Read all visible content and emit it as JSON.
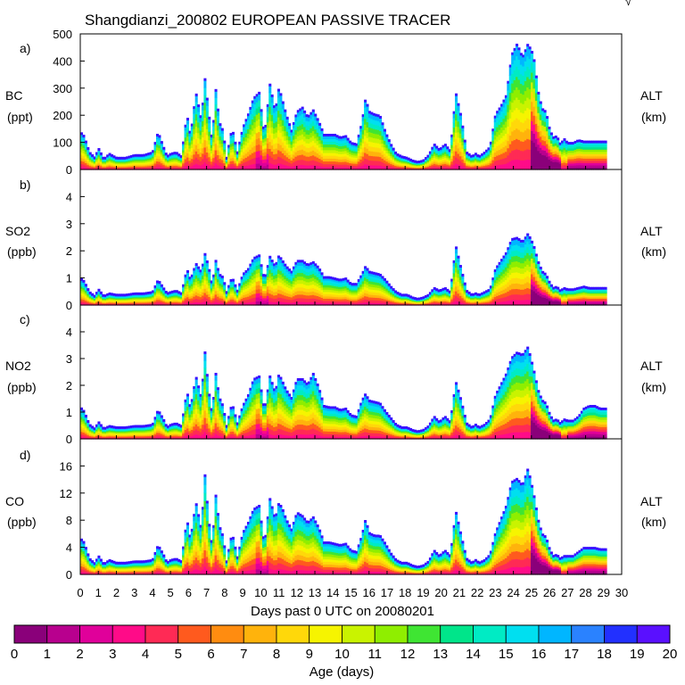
{
  "title": "Shangdianzi_200802 EUROPEAN PASSIVE TRACER",
  "corner_mark": "√",
  "x_axis": {
    "label": "Days past 0 UTC on 20080201",
    "range": [
      0,
      30
    ],
    "ticks": [
      "0",
      "1",
      "2",
      "3",
      "4",
      "5",
      "6",
      "7",
      "8",
      "9",
      "10",
      "11",
      "12",
      "13",
      "14",
      "15",
      "16",
      "17",
      "18",
      "19",
      "20",
      "21",
      "22",
      "23",
      "24",
      "25",
      "26",
      "27",
      "28",
      "29",
      "30"
    ]
  },
  "colorbar": {
    "label": "Age (days)",
    "range": [
      0,
      20
    ],
    "ticks": [
      "0",
      "1",
      "2",
      "3",
      "4",
      "5",
      "6",
      "7",
      "8",
      "9",
      "10",
      "11",
      "12",
      "13",
      "14",
      "15",
      "16",
      "17",
      "18",
      "19",
      "20"
    ],
    "colors": [
      "#8a007a",
      "#b8008e",
      "#e0009a",
      "#ff0b88",
      "#ff2a55",
      "#ff5a1e",
      "#ff8c10",
      "#ffb30c",
      "#ffd80a",
      "#f6f400",
      "#c9f300",
      "#8fee00",
      "#3fe533",
      "#00e58a",
      "#00ebc4",
      "#00dff0",
      "#00b6ff",
      "#2a82ff",
      "#2230ff",
      "#5a10ff"
    ]
  },
  "chart_data": [
    {
      "type": "area",
      "panel": "a)",
      "ylabel": "BC",
      "yunit": "(ppt)",
      "right_label": "ALT",
      "right_unit": "(km)",
      "ylim": [
        0,
        500
      ],
      "yticks": [
        "0",
        "100",
        "200",
        "300",
        "400",
        "500"
      ],
      "x": [
        0,
        0.2,
        0.5,
        0.8,
        1,
        1.3,
        1.6,
        2,
        2.5,
        3,
        3.5,
        4,
        4.3,
        4.6,
        4.8,
        5,
        5.3,
        5.6,
        5.9,
        6.1,
        6.4,
        6.7,
        6.9,
        7.1,
        7.3,
        7.5,
        7.7,
        7.9,
        8.1,
        8.4,
        8.7,
        9,
        9.3,
        9.6,
        9.9,
        10.2,
        10.5,
        10.8,
        11,
        11.2,
        11.4,
        11.7,
        12,
        12.3,
        12.6,
        12.9,
        13.2,
        13.5,
        13.8,
        14.1,
        14.4,
        14.7,
        15,
        15.3,
        15.6,
        15.8,
        16,
        16.3,
        16.6,
        16.9,
        17.2,
        17.5,
        17.8,
        18.1,
        18.4,
        18.7,
        19,
        19.3,
        19.6,
        19.9,
        20.2,
        20.5,
        20.8,
        21.1,
        21.4,
        21.7,
        21.9,
        22.1,
        22.4,
        22.7,
        23,
        23.3,
        23.6,
        23.9,
        24.2,
        24.5,
        24.8,
        25.1,
        25.4,
        25.6,
        25.8,
        26,
        26.2,
        26.4,
        26.6,
        26.8,
        27,
        27.3,
        27.6,
        27.9,
        28.2,
        28.5,
        28.8,
        29.1
      ],
      "values": [
        135,
        120,
        60,
        40,
        75,
        35,
        55,
        40,
        40,
        50,
        50,
        60,
        135,
        80,
        45,
        55,
        60,
        45,
        200,
        120,
        280,
        180,
        330,
        210,
        100,
        290,
        170,
        140,
        40,
        150,
        60,
        150,
        200,
        260,
        280,
        120,
        310,
        210,
        300,
        250,
        200,
        140,
        210,
        225,
        190,
        215,
        175,
        125,
        125,
        125,
        115,
        120,
        95,
        90,
        170,
        260,
        210,
        200,
        195,
        135,
        90,
        55,
        45,
        40,
        30,
        25,
        30,
        50,
        90,
        70,
        90,
        65,
        280,
        190,
        60,
        45,
        55,
        45,
        60,
        80,
        200,
        230,
        270,
        420,
        460,
        410,
        460,
        420,
        270,
        220,
        210,
        145,
        115,
        120,
        90,
        110,
        95,
        95,
        105,
        100,
        100,
        100,
        100,
        100
      ]
    },
    {
      "type": "area",
      "panel": "b)",
      "ylabel": "SO2",
      "yunit": "(ppb)",
      "right_label": "ALT",
      "right_unit": "(km)",
      "ylim": [
        0,
        5
      ],
      "yticks": [
        "0",
        "1",
        "2",
        "3",
        "4"
      ],
      "x": [
        0,
        0.2,
        0.5,
        0.8,
        1,
        1.3,
        1.6,
        2,
        2.5,
        3,
        3.5,
        4,
        4.3,
        4.6,
        4.8,
        5,
        5.3,
        5.6,
        5.9,
        6.1,
        6.4,
        6.7,
        6.9,
        7.1,
        7.3,
        7.5,
        7.7,
        7.9,
        8.1,
        8.4,
        8.7,
        9,
        9.3,
        9.6,
        9.9,
        10.2,
        10.5,
        10.8,
        11,
        11.2,
        11.4,
        11.7,
        12,
        12.3,
        12.6,
        12.9,
        13.2,
        13.5,
        13.8,
        14.1,
        14.4,
        14.7,
        15,
        15.3,
        15.6,
        15.8,
        16,
        16.3,
        16.6,
        16.9,
        17.2,
        17.5,
        17.8,
        18.1,
        18.4,
        18.7,
        19,
        19.3,
        19.6,
        19.9,
        20.2,
        20.5,
        20.8,
        21.1,
        21.4,
        21.7,
        21.9,
        22.1,
        22.4,
        22.7,
        23,
        23.3,
        23.6,
        23.9,
        24.2,
        24.5,
        24.8,
        25.1,
        25.4,
        25.6,
        25.8,
        26,
        26.2,
        26.4,
        26.6,
        26.8,
        27,
        27.3,
        27.6,
        27.9,
        28.2,
        28.5,
        28.8,
        29.1
      ],
      "values": [
        0.95,
        0.85,
        0.45,
        0.3,
        0.55,
        0.3,
        0.4,
        0.35,
        0.35,
        0.4,
        0.4,
        0.45,
        0.9,
        0.6,
        0.4,
        0.45,
        0.5,
        0.4,
        1.3,
        0.9,
        1.5,
        1.2,
        1.85,
        1.4,
        0.7,
        1.6,
        1.1,
        1.0,
        0.45,
        1.0,
        0.5,
        1.1,
        1.3,
        1.7,
        1.8,
        0.9,
        1.75,
        1.4,
        1.8,
        1.6,
        1.4,
        1.2,
        1.6,
        1.6,
        1.45,
        1.55,
        1.35,
        1.0,
        1.0,
        0.95,
        0.9,
        0.95,
        0.75,
        0.75,
        1.1,
        1.4,
        1.2,
        1.15,
        1.1,
        0.9,
        0.65,
        0.45,
        0.35,
        0.35,
        0.25,
        0.2,
        0.25,
        0.35,
        0.6,
        0.5,
        0.6,
        0.45,
        2.15,
        1.3,
        0.5,
        0.35,
        0.4,
        0.35,
        0.45,
        0.55,
        1.3,
        1.6,
        1.9,
        2.4,
        2.45,
        2.3,
        2.6,
        2.2,
        1.5,
        1.2,
        1.1,
        0.8,
        0.6,
        0.65,
        0.5,
        0.6,
        0.55,
        0.55,
        0.6,
        0.65,
        0.6,
        0.6,
        0.6,
        0.6
      ]
    },
    {
      "type": "area",
      "panel": "c)",
      "ylabel": "NO2",
      "yunit": "(ppb)",
      "right_label": "ALT",
      "right_unit": "(km)",
      "ylim": [
        0,
        5
      ],
      "yticks": [
        "0",
        "1",
        "2",
        "3",
        "4"
      ],
      "x": [
        0,
        0.2,
        0.5,
        0.8,
        1,
        1.3,
        1.6,
        2,
        2.5,
        3,
        3.5,
        4,
        4.3,
        4.6,
        4.8,
        5,
        5.3,
        5.6,
        5.9,
        6.1,
        6.4,
        6.7,
        6.9,
        7.1,
        7.3,
        7.5,
        7.7,
        7.9,
        8.1,
        8.4,
        8.7,
        9,
        9.3,
        9.6,
        9.9,
        10.2,
        10.5,
        10.8,
        11,
        11.2,
        11.4,
        11.7,
        12,
        12.3,
        12.6,
        12.9,
        13.2,
        13.5,
        13.8,
        14.1,
        14.4,
        14.7,
        15,
        15.3,
        15.6,
        15.8,
        16,
        16.3,
        16.6,
        16.9,
        17.2,
        17.5,
        17.8,
        18.1,
        18.4,
        18.7,
        19,
        19.3,
        19.6,
        19.9,
        20.2,
        20.5,
        20.8,
        21.1,
        21.4,
        21.7,
        21.9,
        22.1,
        22.4,
        22.7,
        23,
        23.3,
        23.6,
        23.9,
        24.2,
        24.5,
        24.8,
        25.1,
        25.4,
        25.6,
        25.8,
        26,
        26.2,
        26.4,
        26.6,
        26.8,
        27,
        27.3,
        27.6,
        27.9,
        28.2,
        28.5,
        28.8,
        29.1
      ],
      "values": [
        1.15,
        1.0,
        0.5,
        0.35,
        0.6,
        0.35,
        0.45,
        0.4,
        0.4,
        0.45,
        0.45,
        0.5,
        1.05,
        0.7,
        0.4,
        0.5,
        0.55,
        0.45,
        1.75,
        1.1,
        2.3,
        1.5,
        3.2,
        1.8,
        0.9,
        2.4,
        1.5,
        1.2,
        0.45,
        1.3,
        0.55,
        1.2,
        1.6,
        2.2,
        2.3,
        1.0,
        2.3,
        1.7,
        2.4,
        2.1,
        1.8,
        1.5,
        2.2,
        2.2,
        2.0,
        2.4,
        1.9,
        1.2,
        1.15,
        1.15,
        1.05,
        1.1,
        0.85,
        0.8,
        1.4,
        1.65,
        1.4,
        1.35,
        1.3,
        1.0,
        0.75,
        0.5,
        0.4,
        0.4,
        0.3,
        0.25,
        0.3,
        0.45,
        0.8,
        0.6,
        0.8,
        0.6,
        2.1,
        1.4,
        0.55,
        0.4,
        0.5,
        0.4,
        0.5,
        0.7,
        1.6,
        2.0,
        2.4,
        3.0,
        3.2,
        3.1,
        3.4,
        2.6,
        1.7,
        1.4,
        1.3,
        0.9,
        0.65,
        0.7,
        0.55,
        0.7,
        0.65,
        0.65,
        0.8,
        1.1,
        1.2,
        1.2,
        1.1,
        1.1
      ]
    },
    {
      "type": "area",
      "panel": "d)",
      "ylabel": "CO",
      "yunit": "(ppb)",
      "right_label": "ALT",
      "right_unit": "(km)",
      "ylim": [
        0,
        20
      ],
      "yticks": [
        "0",
        "4",
        "8",
        "12",
        "16"
      ],
      "x": [
        0,
        0.2,
        0.5,
        0.8,
        1,
        1.3,
        1.6,
        2,
        2.5,
        3,
        3.5,
        4,
        4.3,
        4.6,
        4.8,
        5,
        5.3,
        5.6,
        5.9,
        6.1,
        6.4,
        6.7,
        6.9,
        7.1,
        7.3,
        7.5,
        7.7,
        7.9,
        8.1,
        8.4,
        8.7,
        9,
        9.3,
        9.6,
        9.9,
        10.2,
        10.5,
        10.8,
        11,
        11.2,
        11.4,
        11.7,
        12,
        12.3,
        12.6,
        12.9,
        13.2,
        13.5,
        13.8,
        14.1,
        14.4,
        14.7,
        15,
        15.3,
        15.6,
        15.8,
        16,
        16.3,
        16.6,
        16.9,
        17.2,
        17.5,
        17.8,
        18.1,
        18.4,
        18.7,
        19,
        19.3,
        19.6,
        19.9,
        20.2,
        20.5,
        20.8,
        21.1,
        21.4,
        21.7,
        21.9,
        22.1,
        22.4,
        22.7,
        23,
        23.3,
        23.6,
        23.9,
        24.2,
        24.5,
        24.8,
        25.1,
        25.4,
        25.6,
        25.8,
        26,
        26.2,
        26.4,
        26.6,
        26.8,
        27,
        27.3,
        27.6,
        27.9,
        28.2,
        28.5,
        28.8,
        29.1
      ],
      "values": [
        5.2,
        4.6,
        2.2,
        1.5,
        2.6,
        1.4,
        2.0,
        1.6,
        1.6,
        1.8,
        1.8,
        2.0,
        4.2,
        2.8,
        1.6,
        2.0,
        2.2,
        1.8,
        8.0,
        5.0,
        10.5,
        6.5,
        14.5,
        8.0,
        4.0,
        11.5,
        7.0,
        5.5,
        1.8,
        6.0,
        2.4,
        6.0,
        7.5,
        9.5,
        10.0,
        4.2,
        11.0,
        8.0,
        10.5,
        9.5,
        8.0,
        6.5,
        9.0,
        8.5,
        7.5,
        8.3,
        6.8,
        4.6,
        4.6,
        4.4,
        4.2,
        4.4,
        3.4,
        3.2,
        5.6,
        8.0,
        6.0,
        5.6,
        5.6,
        4.4,
        3.0,
        2.0,
        1.6,
        1.6,
        1.2,
        1.0,
        1.2,
        1.8,
        3.4,
        2.6,
        3.4,
        2.6,
        9.2,
        5.6,
        2.2,
        1.6,
        2.0,
        1.6,
        2.0,
        2.8,
        6.0,
        8.0,
        10.0,
        13.5,
        14.0,
        13.0,
        15.5,
        12.0,
        7.5,
        5.8,
        5.4,
        3.6,
        2.6,
        2.8,
        2.2,
        2.6,
        2.6,
        2.6,
        3.2,
        3.8,
        3.8,
        3.8,
        3.6,
        3.6
      ]
    }
  ]
}
